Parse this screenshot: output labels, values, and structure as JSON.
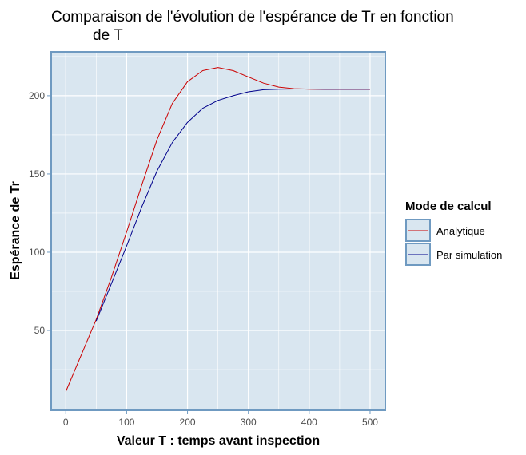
{
  "chart_data": {
    "type": "line",
    "title_line1": "Comparaison de l'évolution de l'espérance de Tr en fonction",
    "title_line2": "de T",
    "xlabel": "Valeur T : temps avant inspection",
    "ylabel": "Espérance de Tr",
    "xlim": [
      -24,
      525
    ],
    "ylim": [
      -1,
      228
    ],
    "x_ticks": [
      0,
      100,
      200,
      300,
      400,
      500
    ],
    "y_ticks": [
      50,
      100,
      150,
      200
    ],
    "x_tick_labels": [
      "0",
      "100",
      "200",
      "300",
      "400",
      "500"
    ],
    "y_tick_labels": [
      "50",
      "100",
      "150",
      "200"
    ],
    "grid": true,
    "legend": {
      "title": "Mode de calcul",
      "position": "right"
    },
    "series": [
      {
        "name": "Analytique",
        "color": "#cc0000",
        "x": [
          0,
          25,
          50,
          75,
          100,
          125,
          150,
          175,
          200,
          225,
          250,
          275,
          300,
          325,
          350,
          375,
          400,
          425,
          450,
          475,
          500
        ],
        "y": [
          11,
          34,
          57,
          84,
          113,
          143,
          172,
          195,
          209,
          216,
          218,
          216,
          212,
          208,
          205.5,
          204.5,
          204.2,
          204.1,
          204.1,
          204.1,
          204.1
        ]
      },
      {
        "name": "Par simulation",
        "color": "#00008b",
        "x": [
          50,
          75,
          100,
          125,
          150,
          175,
          200,
          225,
          250,
          275,
          300,
          325,
          350,
          375,
          400,
          425,
          450,
          475,
          500
        ],
        "y": [
          56,
          80,
          104,
          129,
          152,
          170,
          183,
          192,
          197,
          200,
          202.5,
          203.8,
          204.2,
          204.3,
          204.3,
          204.2,
          204.2,
          204.2,
          204.2
        ]
      }
    ]
  },
  "colors": {
    "panel_background": "#d9e6f0",
    "panel_border": "#6f9ac1",
    "grid": "#ffffff",
    "analytique": "#cc0000",
    "simulation": "#00008b"
  }
}
